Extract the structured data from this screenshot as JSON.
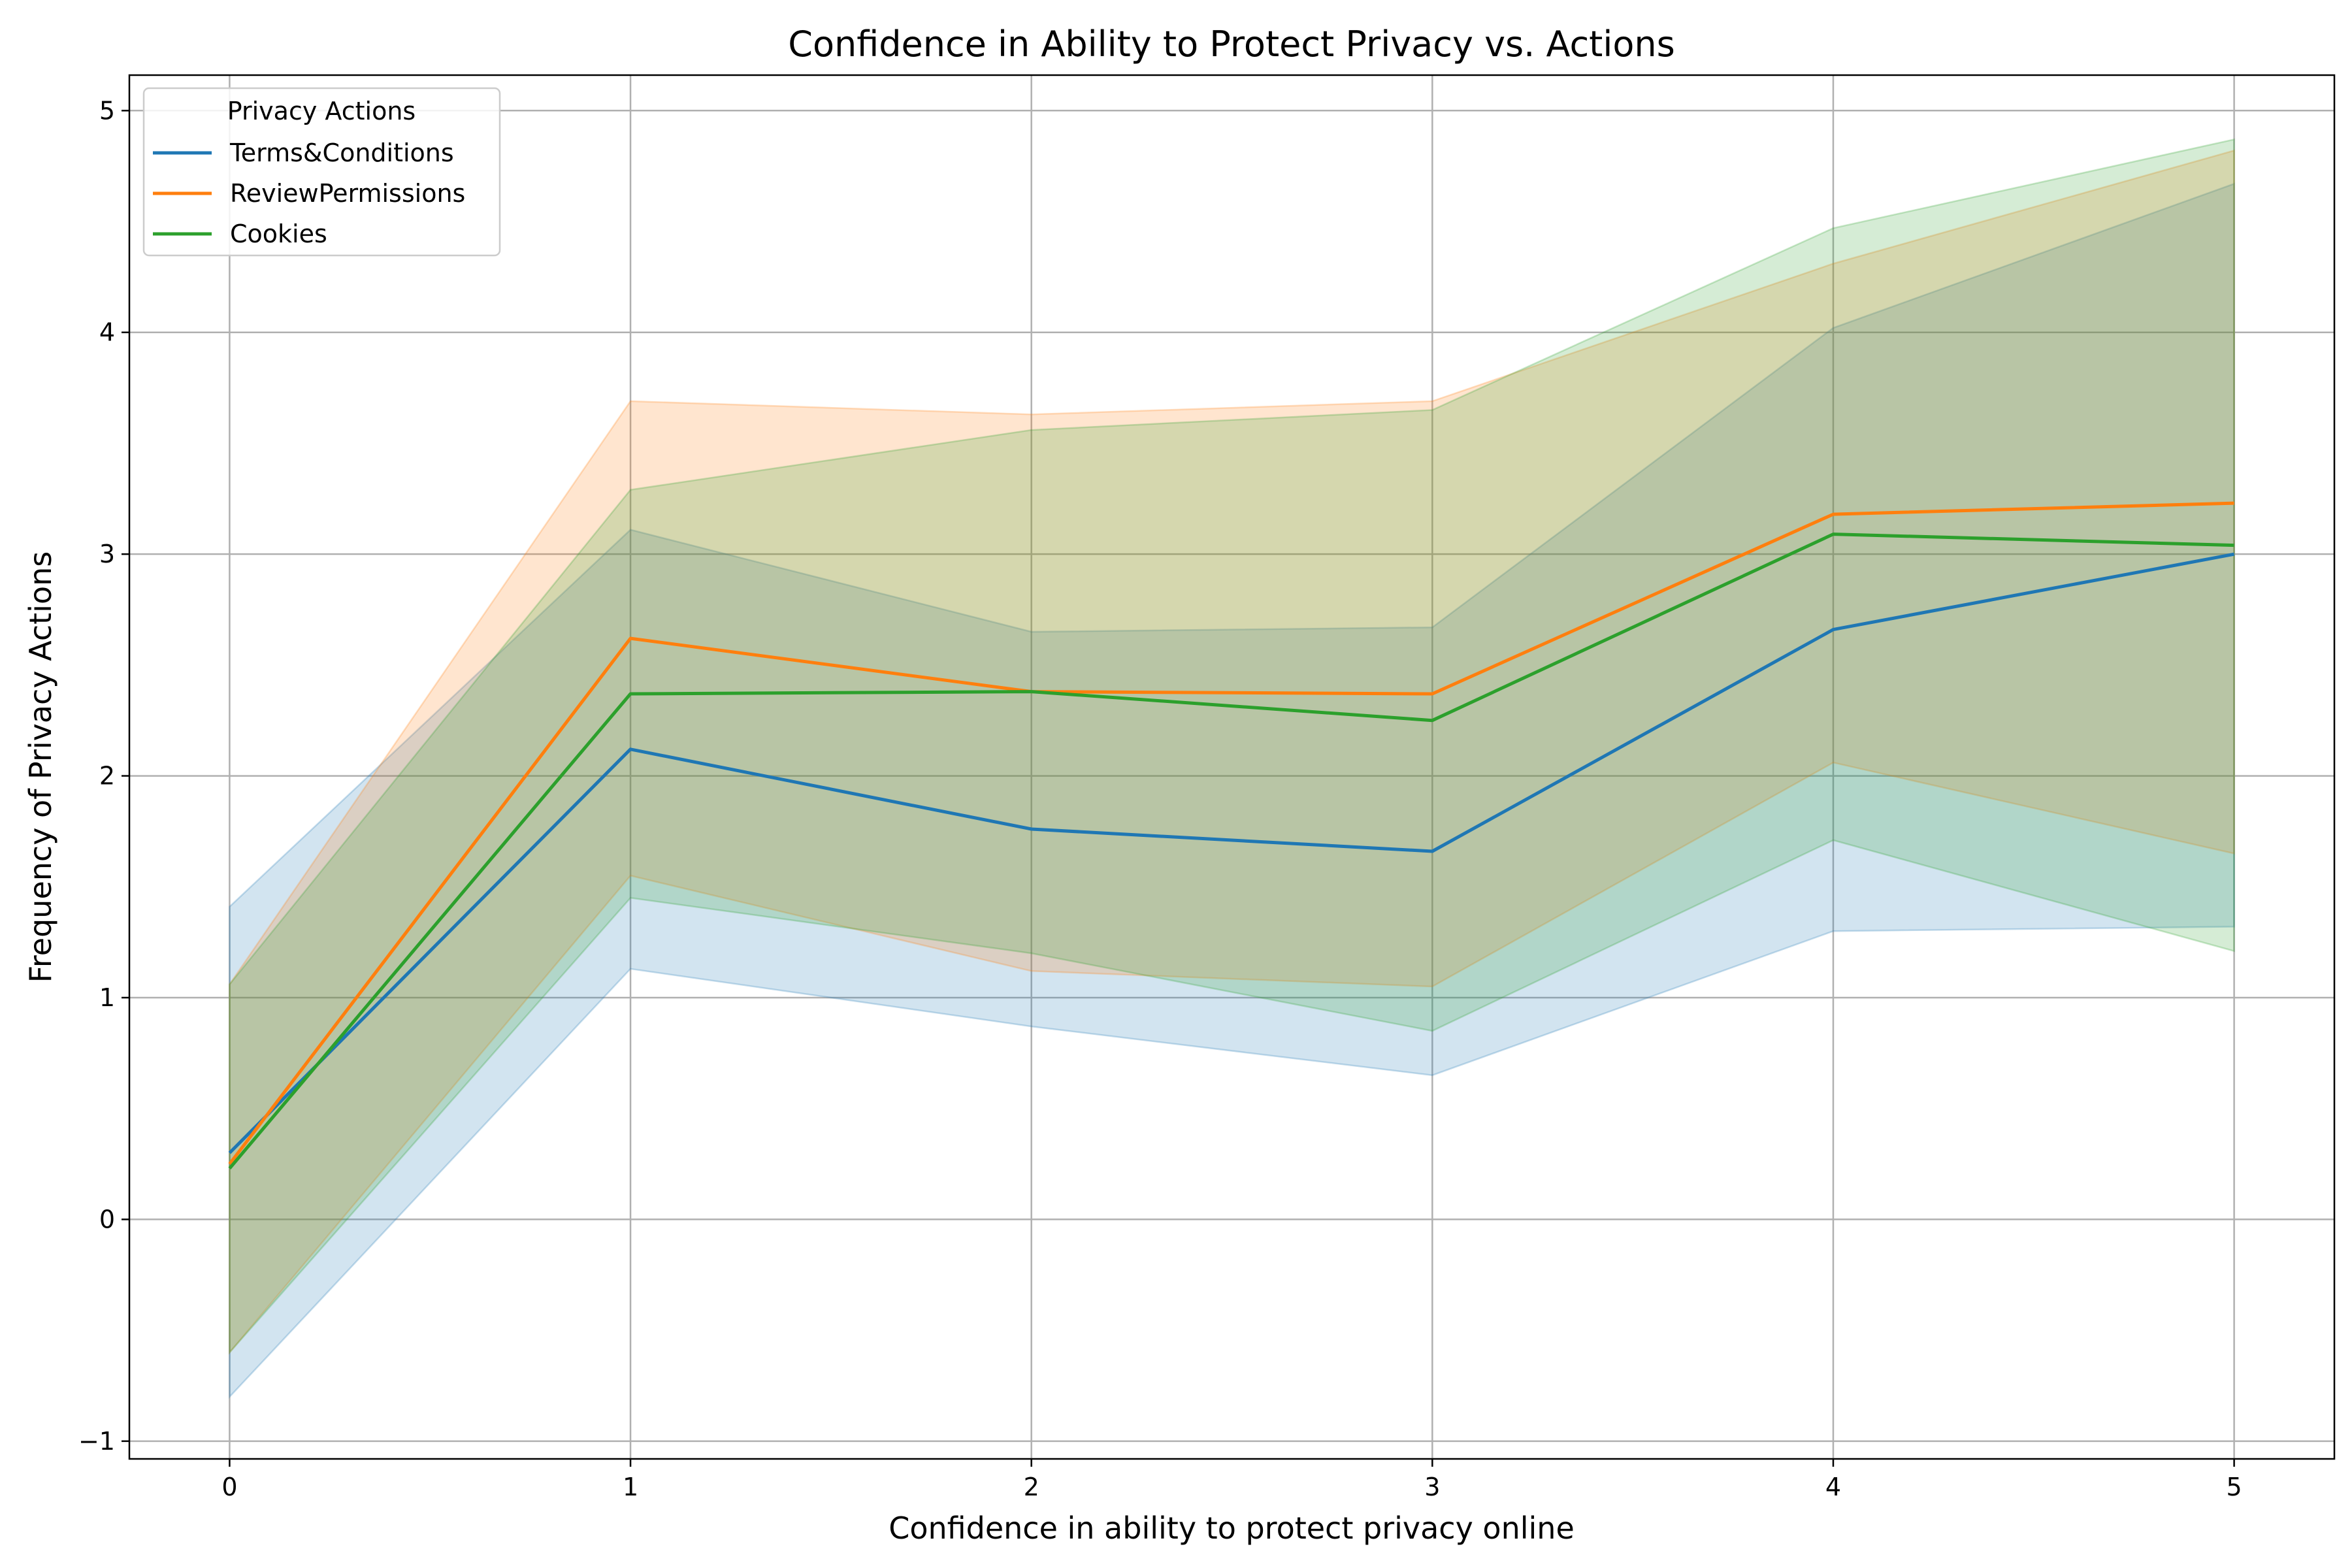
{
  "chart_data": {
    "type": "line",
    "title": "Confidence in Ability to Protect Privacy vs. Actions",
    "xlabel": "Confidence in ability to protect privacy online",
    "ylabel": "Frequency of Privacy Actions",
    "x": [
      0,
      1,
      2,
      3,
      4,
      5
    ],
    "xlim": [
      -0.25,
      5.25
    ],
    "ylim": [
      -1.08,
      5.16
    ],
    "xticks": [
      0,
      1,
      2,
      3,
      4,
      5
    ],
    "yticks": [
      -1,
      0,
      1,
      2,
      3,
      4,
      5
    ],
    "grid": true,
    "legend": {
      "title": "Privacy Actions",
      "placement": "upper-left"
    },
    "series": [
      {
        "name": "Terms&Conditions",
        "color": "#1f77b4",
        "values": [
          0.3,
          2.12,
          1.76,
          1.66,
          2.66,
          3.0
        ],
        "band_lower": [
          -0.8,
          1.13,
          0.87,
          0.65,
          1.3,
          1.32
        ],
        "band_upper": [
          1.41,
          3.11,
          2.65,
          2.67,
          4.02,
          4.67
        ]
      },
      {
        "name": "ReviewPermissions",
        "color": "#ff7f0e",
        "values": [
          0.25,
          2.62,
          2.38,
          2.37,
          3.18,
          3.23
        ],
        "band_lower": [
          -0.6,
          1.55,
          1.12,
          1.05,
          2.06,
          1.65
        ],
        "band_upper": [
          1.06,
          3.69,
          3.63,
          3.69,
          4.31,
          4.82
        ]
      },
      {
        "name": "Cookies",
        "color": "#2ca02c",
        "values": [
          0.23,
          2.37,
          2.38,
          2.25,
          3.09,
          3.04
        ],
        "band_lower": [
          -0.6,
          1.45,
          1.2,
          0.85,
          1.71,
          1.21
        ],
        "band_upper": [
          1.06,
          3.29,
          3.56,
          3.65,
          4.47,
          4.87
        ]
      }
    ]
  }
}
